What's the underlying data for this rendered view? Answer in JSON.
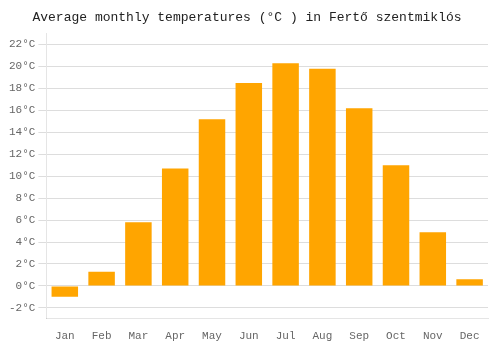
{
  "chart_data": {
    "type": "bar",
    "title": "Average monthly temperatures (°C ) in Fertő szentmiklós",
    "categories": [
      "Jan",
      "Feb",
      "Mar",
      "Apr",
      "May",
      "Jun",
      "Jul",
      "Aug",
      "Sep",
      "Oct",
      "Nov",
      "Dec"
    ],
    "values": [
      -1.0,
      1.3,
      5.8,
      10.7,
      15.2,
      18.5,
      20.3,
      19.8,
      16.2,
      11.0,
      4.9,
      0.6
    ],
    "color": "#FFA500",
    "ylim": [
      -3,
      23
    ],
    "yticks": [
      {
        "value": -2,
        "label": "-2°C"
      },
      {
        "value": 0,
        "label": "0°C"
      },
      {
        "value": 2,
        "label": "2°C"
      },
      {
        "value": 4,
        "label": "4°C"
      },
      {
        "value": 6,
        "label": "6°C"
      },
      {
        "value": 8,
        "label": "8°C"
      },
      {
        "value": 10,
        "label": "10°C"
      },
      {
        "value": 12,
        "label": "12°C"
      },
      {
        "value": 14,
        "label": "14°C"
      },
      {
        "value": 16,
        "label": "16°C"
      },
      {
        "value": 18,
        "label": "18°C"
      },
      {
        "value": 20,
        "label": "20°C"
      },
      {
        "value": 22,
        "label": "22°C"
      }
    ],
    "grid": true
  }
}
